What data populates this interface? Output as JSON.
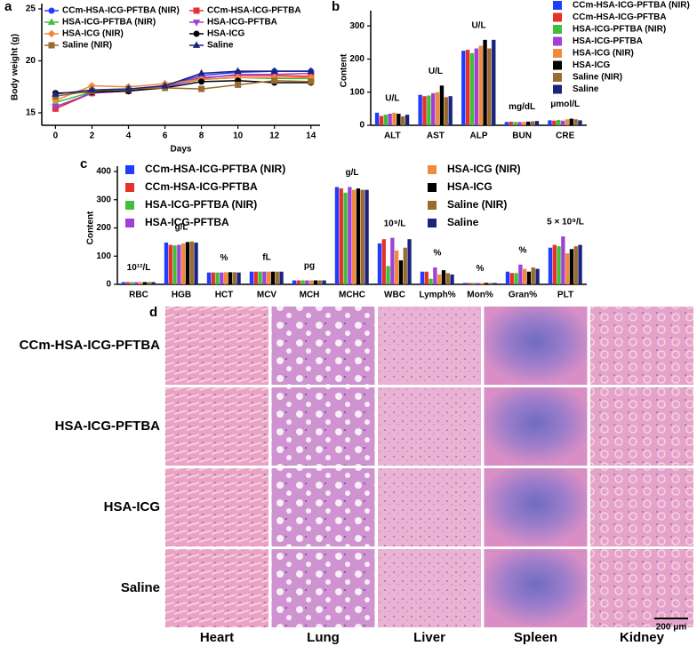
{
  "chart_data": [
    {
      "type": "line",
      "panel": "a",
      "y_label": "Body weight (g)",
      "x_label": "Days",
      "x": [
        0,
        2,
        4,
        6,
        8,
        10,
        12,
        14
      ],
      "xlim": [
        -0.75,
        14.5
      ],
      "xticks": [
        0,
        2,
        4,
        6,
        8,
        10,
        12,
        14
      ],
      "ylim": [
        13.8,
        25
      ],
      "yticks": [
        15,
        20,
        25
      ],
      "legend": "top",
      "series": [
        {
          "name": "CCm-HSA-ICG-PFTBA (NIR)",
          "color": "#1f3cff",
          "marker": "circle",
          "values": [
            15.4,
            17.0,
            17.2,
            17.6,
            18.6,
            18.9,
            19.0,
            19.0
          ]
        },
        {
          "name": "CCm-HSA-ICG-PFTBA",
          "color": "#e8302a",
          "marker": "square",
          "values": [
            15.4,
            16.9,
            17.1,
            17.6,
            18.4,
            18.6,
            18.6,
            18.5
          ]
        },
        {
          "name": "HSA-ICG-PFTBA (NIR)",
          "color": "#3fbf3a",
          "marker": "triangle",
          "values": [
            16.0,
            17.0,
            17.2,
            17.6,
            18.2,
            18.4,
            18.3,
            18.3
          ]
        },
        {
          "name": "HSA-ICG-PFTBA",
          "color": "#a23fd6",
          "marker": "triangle-down",
          "values": [
            15.6,
            16.9,
            17.1,
            17.5,
            18.3,
            18.7,
            18.7,
            18.8
          ]
        },
        {
          "name": "HSA-ICG (NIR)",
          "color": "#f08a3c",
          "marker": "diamond",
          "values": [
            16.2,
            17.6,
            17.5,
            17.8,
            18.2,
            18.4,
            18.4,
            18.4
          ]
        },
        {
          "name": "HSA-ICG",
          "color": "#000000",
          "marker": "circle",
          "values": [
            16.9,
            17.0,
            17.1,
            17.4,
            18.0,
            18.1,
            17.9,
            17.9
          ]
        },
        {
          "name": "Saline (NIR)",
          "color": "#9b6a2f",
          "marker": "square",
          "values": [
            16.6,
            17.1,
            17.3,
            17.4,
            17.3,
            17.7,
            18.1,
            18.0
          ]
        },
        {
          "name": "Saline",
          "color": "#1a237e",
          "marker": "triangle",
          "values": [
            16.8,
            17.2,
            17.3,
            17.6,
            18.8,
            19.0,
            19.0,
            19.0
          ]
        }
      ]
    },
    {
      "type": "bar",
      "panel": "b",
      "y_label": "Content",
      "categories": [
        "ALT",
        "AST",
        "ALP",
        "BUN",
        "CRE"
      ],
      "unit_labels": [
        "U/L",
        "U/L",
        "U/L",
        "mg/dL",
        "μmol/L"
      ],
      "ylim": [
        0,
        330
      ],
      "yticks": [
        0,
        100,
        200,
        300
      ],
      "legend": "right",
      "series": [
        {
          "name": "CCm-HSA-ICG-PFTBA (NIR)",
          "color": "#1f3cff",
          "values": [
            38,
            92,
            225,
            10,
            15
          ]
        },
        {
          "name": "CCm-HSA-ICG-PFTBA",
          "color": "#e8302a",
          "values": [
            28,
            88,
            228,
            11,
            14
          ]
        },
        {
          "name": "HSA-ICG-PFTBA (NIR)",
          "color": "#3fbf3a",
          "values": [
            32,
            90,
            218,
            10,
            16
          ]
        },
        {
          "name": "HSA-ICG-PFTBA",
          "color": "#a23fd6",
          "values": [
            35,
            97,
            232,
            10,
            14
          ]
        },
        {
          "name": "HSA-ICG (NIR)",
          "color": "#f08a3c",
          "values": [
            38,
            100,
            240,
            10,
            18
          ]
        },
        {
          "name": "HSA-ICG",
          "color": "#000000",
          "values": [
            35,
            120,
            258,
            11,
            20
          ]
        },
        {
          "name": "Saline (NIR)",
          "color": "#9b6a2f",
          "values": [
            27,
            85,
            232,
            12,
            18
          ]
        },
        {
          "name": "Saline",
          "color": "#1a237e",
          "values": [
            32,
            88,
            258,
            13,
            15
          ]
        }
      ]
    },
    {
      "type": "bar",
      "panel": "c",
      "y_label": "Content",
      "categories": [
        "RBC",
        "HGB",
        "HCT",
        "MCV",
        "MCH",
        "MCHC",
        "WBC",
        "Lymph%",
        "Mon%",
        "Gran%",
        "PLT"
      ],
      "unit_labels": [
        "10¹²/L",
        "g/L",
        "%",
        "fL",
        "pg",
        "g/L",
        "10⁹/L",
        "%",
        "%",
        "%",
        "5 × 10⁹/L"
      ],
      "ylim": [
        0,
        400
      ],
      "yticks": [
        0,
        100,
        200,
        300,
        400
      ],
      "legend": "top",
      "series": [
        {
          "name": "CCm-HSA-ICG-PFTBA (NIR)",
          "color": "#1f3cff",
          "values": [
            8,
            148,
            42,
            45,
            14,
            345,
            145,
            45,
            5,
            45,
            130
          ]
        },
        {
          "name": "CCm-HSA-ICG-PFTBA",
          "color": "#e8302a",
          "values": [
            8,
            140,
            42,
            45,
            14,
            340,
            160,
            45,
            5,
            40,
            140
          ]
        },
        {
          "name": "HSA-ICG-PFTBA (NIR)",
          "color": "#3fbf3a",
          "values": [
            8,
            138,
            42,
            45,
            14,
            325,
            65,
            20,
            5,
            40,
            135
          ]
        },
        {
          "name": "HSA-ICG-PFTBA",
          "color": "#a23fd6",
          "values": [
            8,
            140,
            42,
            45,
            14,
            345,
            165,
            60,
            5,
            70,
            170
          ]
        },
        {
          "name": "HSA-ICG (NIR)",
          "color": "#f08a3c",
          "values": [
            8,
            145,
            43,
            45,
            14,
            335,
            120,
            35,
            5,
            55,
            110
          ]
        },
        {
          "name": "HSA-ICG",
          "color": "#000000",
          "values": [
            8,
            150,
            43,
            45,
            14,
            340,
            85,
            50,
            5,
            45,
            125
          ]
        },
        {
          "name": "Saline (NIR)",
          "color": "#9b6a2f",
          "values": [
            8,
            152,
            43,
            45,
            14,
            335,
            130,
            40,
            5,
            60,
            135
          ]
        },
        {
          "name": "Saline",
          "color": "#1a237e",
          "values": [
            8,
            148,
            42,
            45,
            14,
            335,
            160,
            35,
            5,
            55,
            140
          ]
        }
      ]
    }
  ],
  "histology": {
    "panel": "d",
    "rows": [
      "CCm-HSA-ICG-PFTBA",
      "HSA-ICG-PFTBA",
      "HSA-ICG",
      "Saline"
    ],
    "columns": [
      "Heart",
      "Lung",
      "Liver",
      "Spleen",
      "Kidney"
    ],
    "scale_bar": "200 μm"
  }
}
